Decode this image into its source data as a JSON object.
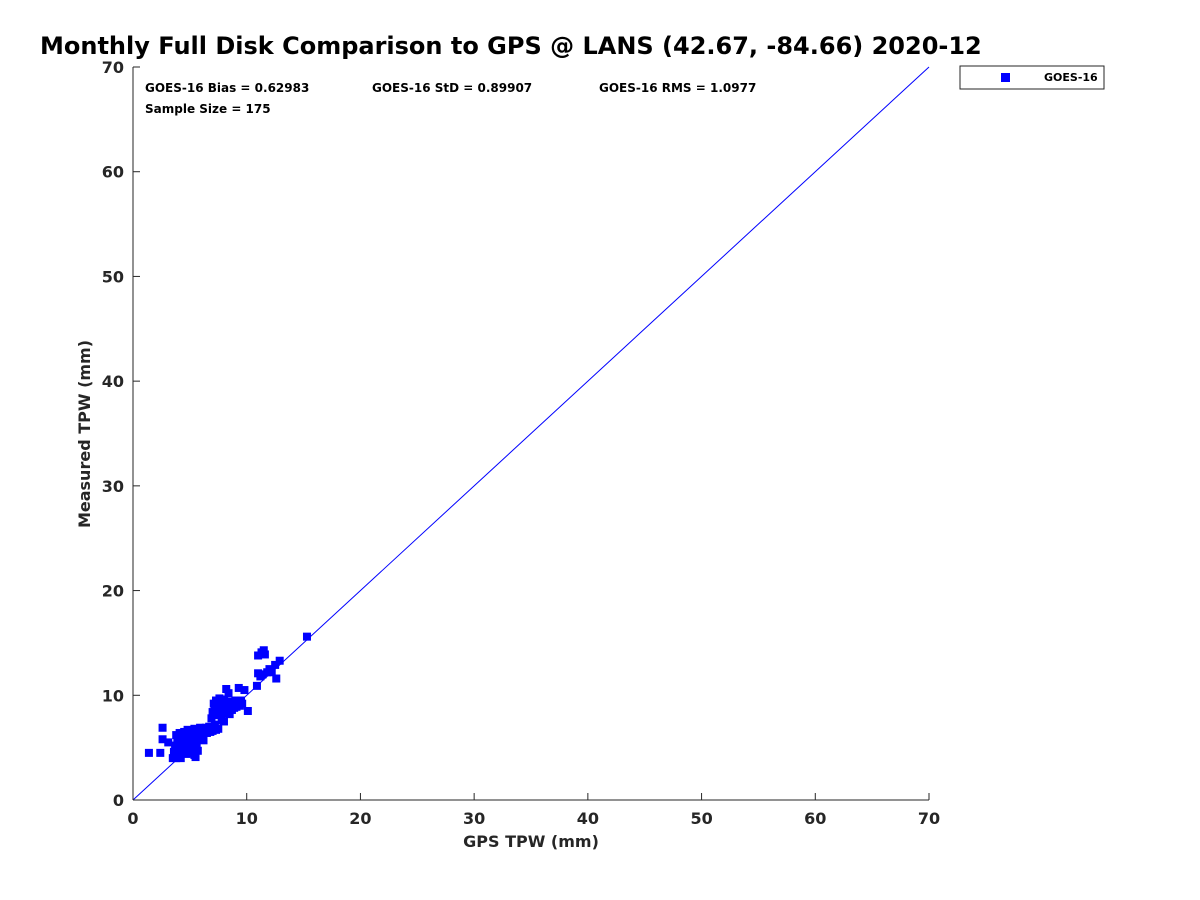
{
  "chart_data": {
    "type": "scatter",
    "title": "Monthly Full Disk Comparison to GPS @ LANS (42.67, -84.66) 2020-12",
    "xlabel": "GPS TPW (mm)",
    "ylabel": "Measured TPW (mm)",
    "xlim": [
      0,
      70
    ],
    "ylim": [
      0,
      70
    ],
    "xticks": [
      0,
      10,
      20,
      30,
      40,
      50,
      60,
      70
    ],
    "yticks": [
      0,
      10,
      20,
      30,
      40,
      50,
      60,
      70
    ],
    "grid": false,
    "legend_position": "top-right outside",
    "reference_line": {
      "x": [
        0,
        70
      ],
      "y": [
        0,
        70
      ],
      "color": "#0000ff"
    },
    "stats": {
      "bias": "GOES-16 Bias = 0.62983",
      "std": "GOES-16 StD = 0.89907",
      "rms": "GOES-16 RMS = 1.0977",
      "sample": "Sample Size = 175"
    },
    "series": [
      {
        "name": "GOES-16",
        "color": "#0000ff",
        "marker": "square",
        "x": [
          1.4,
          2.4,
          2.6,
          2.6,
          3.1,
          3.5,
          3.6,
          3.7,
          3.8,
          3.8,
          3.9,
          4.0,
          4.0,
          4.1,
          4.2,
          4.2,
          4.3,
          4.4,
          4.4,
          4.5,
          4.5,
          4.6,
          4.6,
          4.7,
          4.7,
          4.8,
          4.8,
          4.9,
          4.9,
          5.0,
          5.0,
          5.1,
          5.1,
          5.2,
          5.2,
          5.3,
          5.3,
          5.4,
          5.4,
          5.5,
          5.5,
          5.6,
          5.6,
          5.7,
          5.8,
          5.9,
          6.0,
          6.1,
          6.2,
          6.3,
          6.4,
          6.5,
          6.6,
          6.7,
          6.8,
          6.9,
          7.0,
          7.0,
          7.1,
          7.2,
          7.2,
          7.3,
          7.3,
          7.4,
          7.5,
          7.5,
          7.6,
          7.6,
          7.7,
          7.8,
          7.8,
          7.9,
          7.9,
          8.0,
          8.0,
          8.1,
          8.1,
          8.2,
          8.2,
          8.3,
          8.3,
          8.4,
          8.5,
          8.5,
          8.6,
          8.7,
          8.8,
          8.9,
          9.0,
          9.1,
          9.2,
          9.3,
          9.4,
          9.5,
          9.6,
          9.8,
          10.1,
          10.9,
          11.0,
          11.0,
          11.2,
          11.3,
          11.4,
          11.5,
          11.6,
          11.8,
          12.0,
          12.2,
          12.5,
          12.6,
          12.9,
          15.3
        ],
        "y": [
          4.5,
          4.5,
          6.9,
          5.8,
          5.5,
          4.0,
          4.6,
          5.2,
          6.2,
          4.0,
          5.7,
          5.0,
          4.3,
          6.4,
          5.4,
          4.0,
          6.0,
          5.1,
          4.7,
          6.5,
          5.8,
          4.6,
          6.1,
          5.3,
          4.4,
          6.7,
          5.6,
          4.8,
          6.3,
          5.9,
          5.0,
          4.5,
          6.6,
          5.5,
          4.9,
          6.1,
          5.2,
          4.3,
          6.8,
          5.7,
          4.1,
          6.0,
          5.1,
          4.7,
          6.4,
          6.9,
          6.2,
          6.0,
          5.7,
          6.6,
          6.9,
          6.4,
          6.8,
          7.0,
          6.5,
          7.8,
          8.4,
          6.6,
          9.2,
          8.8,
          7.2,
          9.5,
          6.7,
          8.1,
          9.0,
          6.8,
          9.7,
          8.5,
          9.3,
          8.9,
          7.6,
          9.1,
          8.3,
          9.6,
          7.5,
          8.7,
          9.4,
          8.6,
          10.6,
          9.2,
          8.4,
          10.2,
          9.0,
          8.2,
          9.4,
          8.6,
          9.1,
          8.8,
          9.5,
          8.9,
          9.3,
          10.7,
          9.0,
          9.5,
          9.2,
          10.5,
          8.5,
          10.9,
          12.1,
          13.8,
          11.8,
          14.1,
          12.0,
          14.3,
          13.9,
          12.2,
          12.5,
          12.2,
          12.9,
          11.6,
          13.3,
          15.6
        ]
      }
    ]
  }
}
